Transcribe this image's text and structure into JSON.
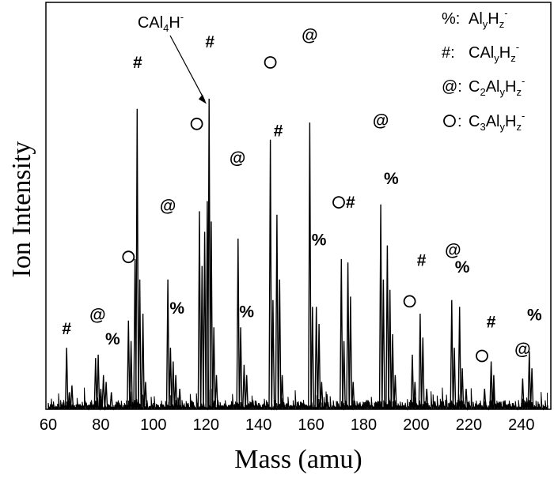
{
  "chart_data": {
    "type": "line",
    "xlabel": "Mass (amu)",
    "ylabel": "Ion Intensity",
    "xlim": [
      60,
      250
    ],
    "x_ticks": [
      "60",
      "80",
      "100",
      "120",
      "140",
      "160",
      "180",
      "200",
      "220",
      "240"
    ],
    "y_ticks_visible": false,
    "grid": false,
    "legend": {
      "placement": "top-right",
      "entries": [
        {
          "symbol": "%",
          "base": "Al",
          "parts": [
            [
              "Al",
              ""
            ],
            [
              "y",
              "sub"
            ],
            [
              "H",
              ""
            ],
            [
              "z",
              "sub"
            ],
            [
              "-",
              "sup"
            ]
          ]
        },
        {
          "symbol": "#",
          "parts": [
            [
              "CAl",
              ""
            ],
            [
              "y",
              "sub"
            ],
            [
              "H",
              ""
            ],
            [
              "z",
              "sub"
            ],
            [
              "-",
              "sup"
            ]
          ]
        },
        {
          "symbol": "@",
          "parts": [
            [
              "C",
              ""
            ],
            [
              "2",
              "sub"
            ],
            [
              "Al",
              ""
            ],
            [
              "y",
              "sub"
            ],
            [
              "H",
              ""
            ],
            [
              "z",
              "sub"
            ],
            [
              "-",
              "sup"
            ]
          ]
        },
        {
          "symbol": "O",
          "parts": [
            [
              "C",
              ""
            ],
            [
              "3",
              "sub"
            ],
            [
              "Al",
              ""
            ],
            [
              "y",
              "sub"
            ],
            [
              "H",
              ""
            ],
            [
              "z",
              "sub"
            ],
            [
              "-",
              "sup"
            ]
          ]
        }
      ]
    },
    "annotation": {
      "parts": [
        [
          "CAl",
          ""
        ],
        [
          "4",
          "sub"
        ],
        [
          "H",
          ""
        ],
        [
          "-",
          "sup"
        ]
      ],
      "x": 120.5,
      "y": 0.89
    },
    "peaks": [
      {
        "x": 67,
        "y": 0.18
      },
      {
        "x": 68,
        "y": 0.05
      },
      {
        "x": 69,
        "y": 0.07
      },
      {
        "x": 78,
        "y": 0.15
      },
      {
        "x": 79,
        "y": 0.16
      },
      {
        "x": 80,
        "y": 0.06
      },
      {
        "x": 81,
        "y": 0.1
      },
      {
        "x": 82,
        "y": 0.08
      },
      {
        "x": 84,
        "y": 0.05
      },
      {
        "x": 90.5,
        "y": 0.26
      },
      {
        "x": 91.5,
        "y": 0.2
      },
      {
        "x": 93,
        "y": 0.44
      },
      {
        "x": 93.8,
        "y": 0.88
      },
      {
        "x": 94.8,
        "y": 0.38
      },
      {
        "x": 96,
        "y": 0.28
      },
      {
        "x": 97,
        "y": 0.08
      },
      {
        "x": 105.5,
        "y": 0.38
      },
      {
        "x": 106.5,
        "y": 0.18
      },
      {
        "x": 107.5,
        "y": 0.14
      },
      {
        "x": 108.5,
        "y": 0.1
      },
      {
        "x": 110,
        "y": 0.06
      },
      {
        "x": 117.5,
        "y": 0.58
      },
      {
        "x": 118.5,
        "y": 0.42
      },
      {
        "x": 119.5,
        "y": 0.52
      },
      {
        "x": 120.5,
        "y": 0.61
      },
      {
        "x": 121.2,
        "y": 0.91
      },
      {
        "x": 122,
        "y": 0.55
      },
      {
        "x": 123,
        "y": 0.24
      },
      {
        "x": 124,
        "y": 0.1
      },
      {
        "x": 132.2,
        "y": 0.5
      },
      {
        "x": 133.2,
        "y": 0.24
      },
      {
        "x": 134.5,
        "y": 0.13
      },
      {
        "x": 135.5,
        "y": 0.1
      },
      {
        "x": 144.5,
        "y": 0.79
      },
      {
        "x": 145.5,
        "y": 0.32
      },
      {
        "x": 147,
        "y": 0.57
      },
      {
        "x": 148,
        "y": 0.38
      },
      {
        "x": 149,
        "y": 0.1
      },
      {
        "x": 159.5,
        "y": 0.84
      },
      {
        "x": 160.5,
        "y": 0.3
      },
      {
        "x": 162,
        "y": 0.3
      },
      {
        "x": 163,
        "y": 0.25
      },
      {
        "x": 164,
        "y": 0.08
      },
      {
        "x": 171.5,
        "y": 0.44
      },
      {
        "x": 172.5,
        "y": 0.2
      },
      {
        "x": 174,
        "y": 0.43
      },
      {
        "x": 175,
        "y": 0.33
      },
      {
        "x": 176,
        "y": 0.08
      },
      {
        "x": 186.5,
        "y": 0.6
      },
      {
        "x": 187.5,
        "y": 0.38
      },
      {
        "x": 189,
        "y": 0.48
      },
      {
        "x": 190,
        "y": 0.35
      },
      {
        "x": 191,
        "y": 0.22
      },
      {
        "x": 192,
        "y": 0.1
      },
      {
        "x": 198.5,
        "y": 0.16
      },
      {
        "x": 199.5,
        "y": 0.08
      },
      {
        "x": 201.5,
        "y": 0.28
      },
      {
        "x": 202.5,
        "y": 0.21
      },
      {
        "x": 204,
        "y": 0.06
      },
      {
        "x": 213.5,
        "y": 0.32
      },
      {
        "x": 214.5,
        "y": 0.18
      },
      {
        "x": 216.5,
        "y": 0.3
      },
      {
        "x": 217.5,
        "y": 0.12
      },
      {
        "x": 219,
        "y": 0.06
      },
      {
        "x": 226,
        "y": 0.06
      },
      {
        "x": 228.5,
        "y": 0.14
      },
      {
        "x": 229.5,
        "y": 0.1
      },
      {
        "x": 240.5,
        "y": 0.09
      },
      {
        "x": 243,
        "y": 0.17
      },
      {
        "x": 244,
        "y": 0.12
      }
    ],
    "markers": [
      {
        "symbol": "#",
        "x": 67,
        "y": 0.22
      },
      {
        "symbol": "@",
        "x": 78.8,
        "y": 0.26
      },
      {
        "symbol": "%",
        "x": 84.5,
        "y": 0.19
      },
      {
        "symbol": "O",
        "x": 90.5,
        "y": 0.43
      },
      {
        "symbol": "#",
        "x": 94,
        "y": 1.0
      },
      {
        "symbol": "@",
        "x": 105.5,
        "y": 0.58
      },
      {
        "symbol": "%",
        "x": 109,
        "y": 0.28
      },
      {
        "symbol": "O",
        "x": 116.5,
        "y": 0.82
      },
      {
        "symbol": "#",
        "x": 121.5,
        "y": 1.06
      },
      {
        "symbol": "@",
        "x": 132,
        "y": 0.72
      },
      {
        "symbol": "%",
        "x": 135.5,
        "y": 0.27
      },
      {
        "symbol": "O",
        "x": 144.5,
        "y": 1.0
      },
      {
        "symbol": "#",
        "x": 147.5,
        "y": 0.8
      },
      {
        "symbol": "@",
        "x": 159.5,
        "y": 1.08
      },
      {
        "symbol": "%",
        "x": 163,
        "y": 0.48
      },
      {
        "symbol": "O",
        "x": 170.5,
        "y": 0.59
      },
      {
        "symbol": "#",
        "x": 175,
        "y": 0.59
      },
      {
        "symbol": "@",
        "x": 186.5,
        "y": 0.83
      },
      {
        "symbol": "%",
        "x": 190.5,
        "y": 0.66
      },
      {
        "symbol": "#",
        "x": 202,
        "y": 0.42
      },
      {
        "symbol": "O",
        "x": 197.5,
        "y": 0.3
      },
      {
        "symbol": "@",
        "x": 214,
        "y": 0.45
      },
      {
        "symbol": "%",
        "x": 217.5,
        "y": 0.4
      },
      {
        "symbol": "#",
        "x": 228.5,
        "y": 0.24
      },
      {
        "symbol": "O",
        "x": 225,
        "y": 0.14
      },
      {
        "symbol": "@",
        "x": 240.5,
        "y": 0.16
      },
      {
        "symbol": "%",
        "x": 245,
        "y": 0.26
      }
    ]
  }
}
